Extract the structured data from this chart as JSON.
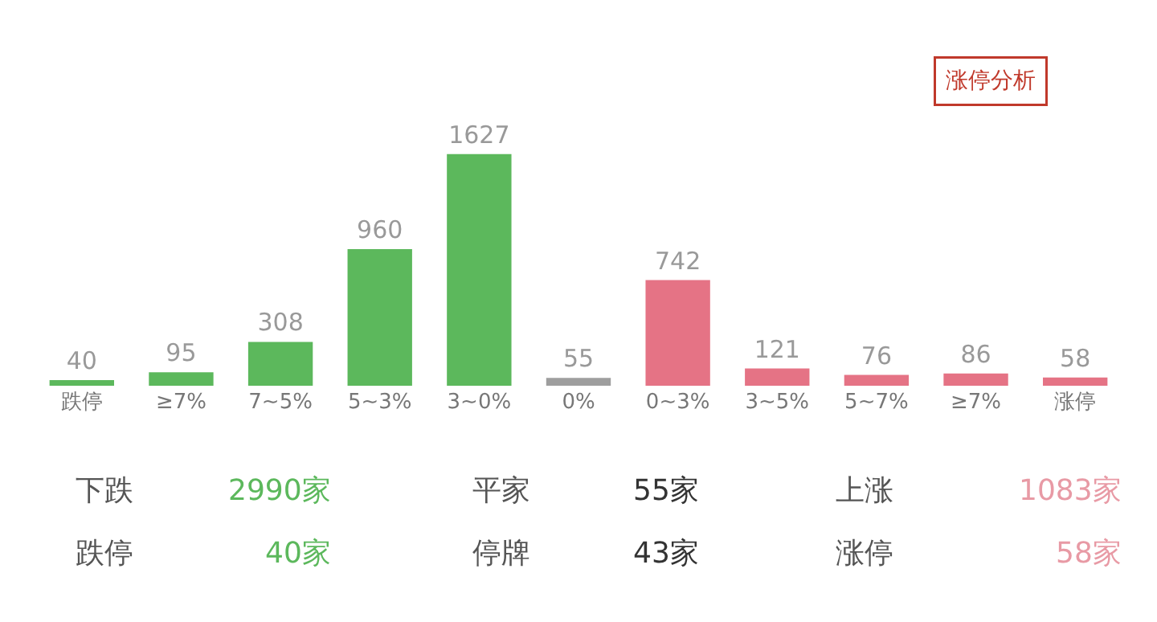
{
  "chart_data": {
    "type": "bar",
    "categories": [
      "跌停",
      "≥7%",
      "7~5%",
      "5~3%",
      "3~0%",
      "0%",
      "0~3%",
      "3~5%",
      "5~7%",
      "≥7%",
      "涨停"
    ],
    "values": [
      40,
      95,
      308,
      960,
      1627,
      55,
      742,
      121,
      76,
      86,
      58
    ],
    "colors": [
      "#5cb85c",
      "#5cb85c",
      "#5cb85c",
      "#5cb85c",
      "#5cb85c",
      "#9e9e9e",
      "#e57385",
      "#e57385",
      "#e57385",
      "#e57385",
      "#e57385"
    ],
    "data_labels": true,
    "legend": false,
    "tick_labels": "x",
    "annotations": [
      "涨停分析",
      "下跌",
      "2990家",
      "平家",
      "55家",
      "上涨",
      "1083家",
      "跌停",
      "40家",
      "停牌",
      "43家",
      "涨停",
      "58家"
    ]
  }
}
